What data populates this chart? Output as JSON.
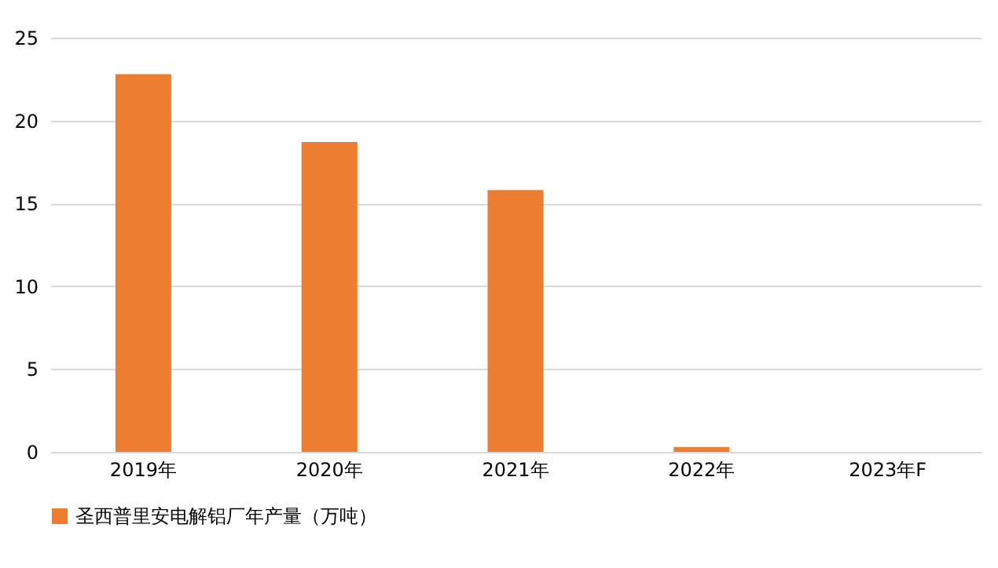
{
  "chart_data": {
    "type": "bar",
    "categories": [
      "2019年",
      "2020年",
      "2021年",
      "2022年",
      "2023年F"
    ],
    "series": [
      {
        "name": "圣西普里安电解铝厂年产量（万吨）",
        "color": "#ed7d31",
        "values": [
          22.8,
          18.7,
          15.8,
          0.3,
          0
        ]
      }
    ],
    "ylim": [
      0,
      25
    ],
    "yticks": [
      0,
      5,
      10,
      15,
      20,
      25
    ],
    "grid": "y",
    "legend": "bottom"
  }
}
